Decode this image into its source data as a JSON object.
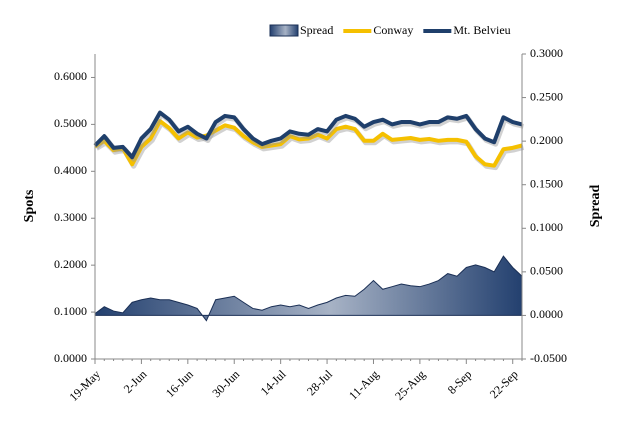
{
  "chart_data": {
    "type": "line",
    "y_label": "Spots",
    "y2_label": "Spread",
    "categories": [
      "19-May",
      null,
      null,
      null,
      null,
      "2-Jun",
      null,
      null,
      null,
      null,
      "16-Jun",
      null,
      null,
      null,
      null,
      "30-Jun",
      null,
      null,
      null,
      null,
      "14-Jul",
      null,
      null,
      null,
      null,
      "28-Jul",
      null,
      null,
      null,
      null,
      "11-Aug",
      null,
      null,
      null,
      null,
      "25-Aug",
      null,
      null,
      null,
      null,
      "8-Sep",
      null,
      null,
      null,
      null,
      "22-Sep",
      null
    ],
    "series": [
      {
        "name": "Spread",
        "type": "area",
        "axis": "y2",
        "color": "#23406f",
        "values": [
          0.002,
          0.01,
          0.005,
          0.003,
          0.015,
          0.018,
          0.02,
          0.018,
          0.018,
          0.015,
          0.012,
          0.008,
          -0.006,
          0.018,
          0.02,
          0.022,
          0.015,
          0.008,
          0.006,
          0.01,
          0.012,
          0.01,
          0.012,
          0.008,
          0.012,
          0.015,
          0.02,
          0.023,
          0.022,
          0.03,
          0.04,
          0.03,
          0.033,
          0.036,
          0.034,
          0.033,
          0.036,
          0.04,
          0.048,
          0.045,
          0.055,
          0.058,
          0.055,
          0.05,
          0.068,
          0.055,
          0.045
        ]
      },
      {
        "name": "Conway",
        "type": "line",
        "color": "#f5c000",
        "values": [
          0.453,
          0.465,
          0.445,
          0.449,
          0.415,
          0.452,
          0.47,
          0.507,
          0.492,
          0.47,
          0.483,
          0.472,
          0.476,
          0.487,
          0.498,
          0.493,
          0.475,
          0.462,
          0.452,
          0.455,
          0.458,
          0.475,
          0.468,
          0.47,
          0.478,
          0.47,
          0.49,
          0.495,
          0.49,
          0.465,
          0.465,
          0.48,
          0.467,
          0.469,
          0.471,
          0.467,
          0.469,
          0.465,
          0.467,
          0.467,
          0.463,
          0.432,
          0.415,
          0.412,
          0.447,
          0.45,
          0.455
        ]
      },
      {
        "name": "Mt. Belvieu",
        "type": "line",
        "color": "#1f3f6b",
        "values": [
          0.455,
          0.475,
          0.45,
          0.452,
          0.43,
          0.47,
          0.49,
          0.525,
          0.51,
          0.485,
          0.495,
          0.48,
          0.47,
          0.505,
          0.518,
          0.515,
          0.49,
          0.47,
          0.458,
          0.465,
          0.47,
          0.485,
          0.48,
          0.478,
          0.49,
          0.485,
          0.51,
          0.518,
          0.512,
          0.495,
          0.505,
          0.51,
          0.5,
          0.505,
          0.505,
          0.5,
          0.505,
          0.505,
          0.515,
          0.512,
          0.518,
          0.49,
          0.47,
          0.462,
          0.515,
          0.505,
          0.5
        ]
      }
    ],
    "ylim": [
      0,
      0.65
    ],
    "yticks": [
      {
        "value": 0,
        "label": "0.0000"
      },
      {
        "value": 0.1,
        "label": "0.1000"
      },
      {
        "value": 0.2,
        "label": "0.2000"
      },
      {
        "value": 0.3,
        "label": "0.3000"
      },
      {
        "value": 0.4,
        "label": "0.4000"
      },
      {
        "value": 0.5,
        "label": "0.5000"
      },
      {
        "value": 0.6,
        "label": "0.6000"
      }
    ],
    "y2lim": [
      -0.05,
      0.3
    ],
    "y2ticks": [
      {
        "value": -0.05,
        "label": "-0.0500"
      },
      {
        "value": 0,
        "label": "0.0000"
      },
      {
        "value": 0.05,
        "label": "0.0500"
      },
      {
        "value": 0.1,
        "label": "0.1000"
      },
      {
        "value": 0.15,
        "label": "0.1500"
      },
      {
        "value": 0.2,
        "label": "0.2000"
      },
      {
        "value": 0.25,
        "label": "0.2500"
      },
      {
        "value": 0.3,
        "label": "0.3000"
      }
    ],
    "grid": false,
    "legend": "top"
  }
}
